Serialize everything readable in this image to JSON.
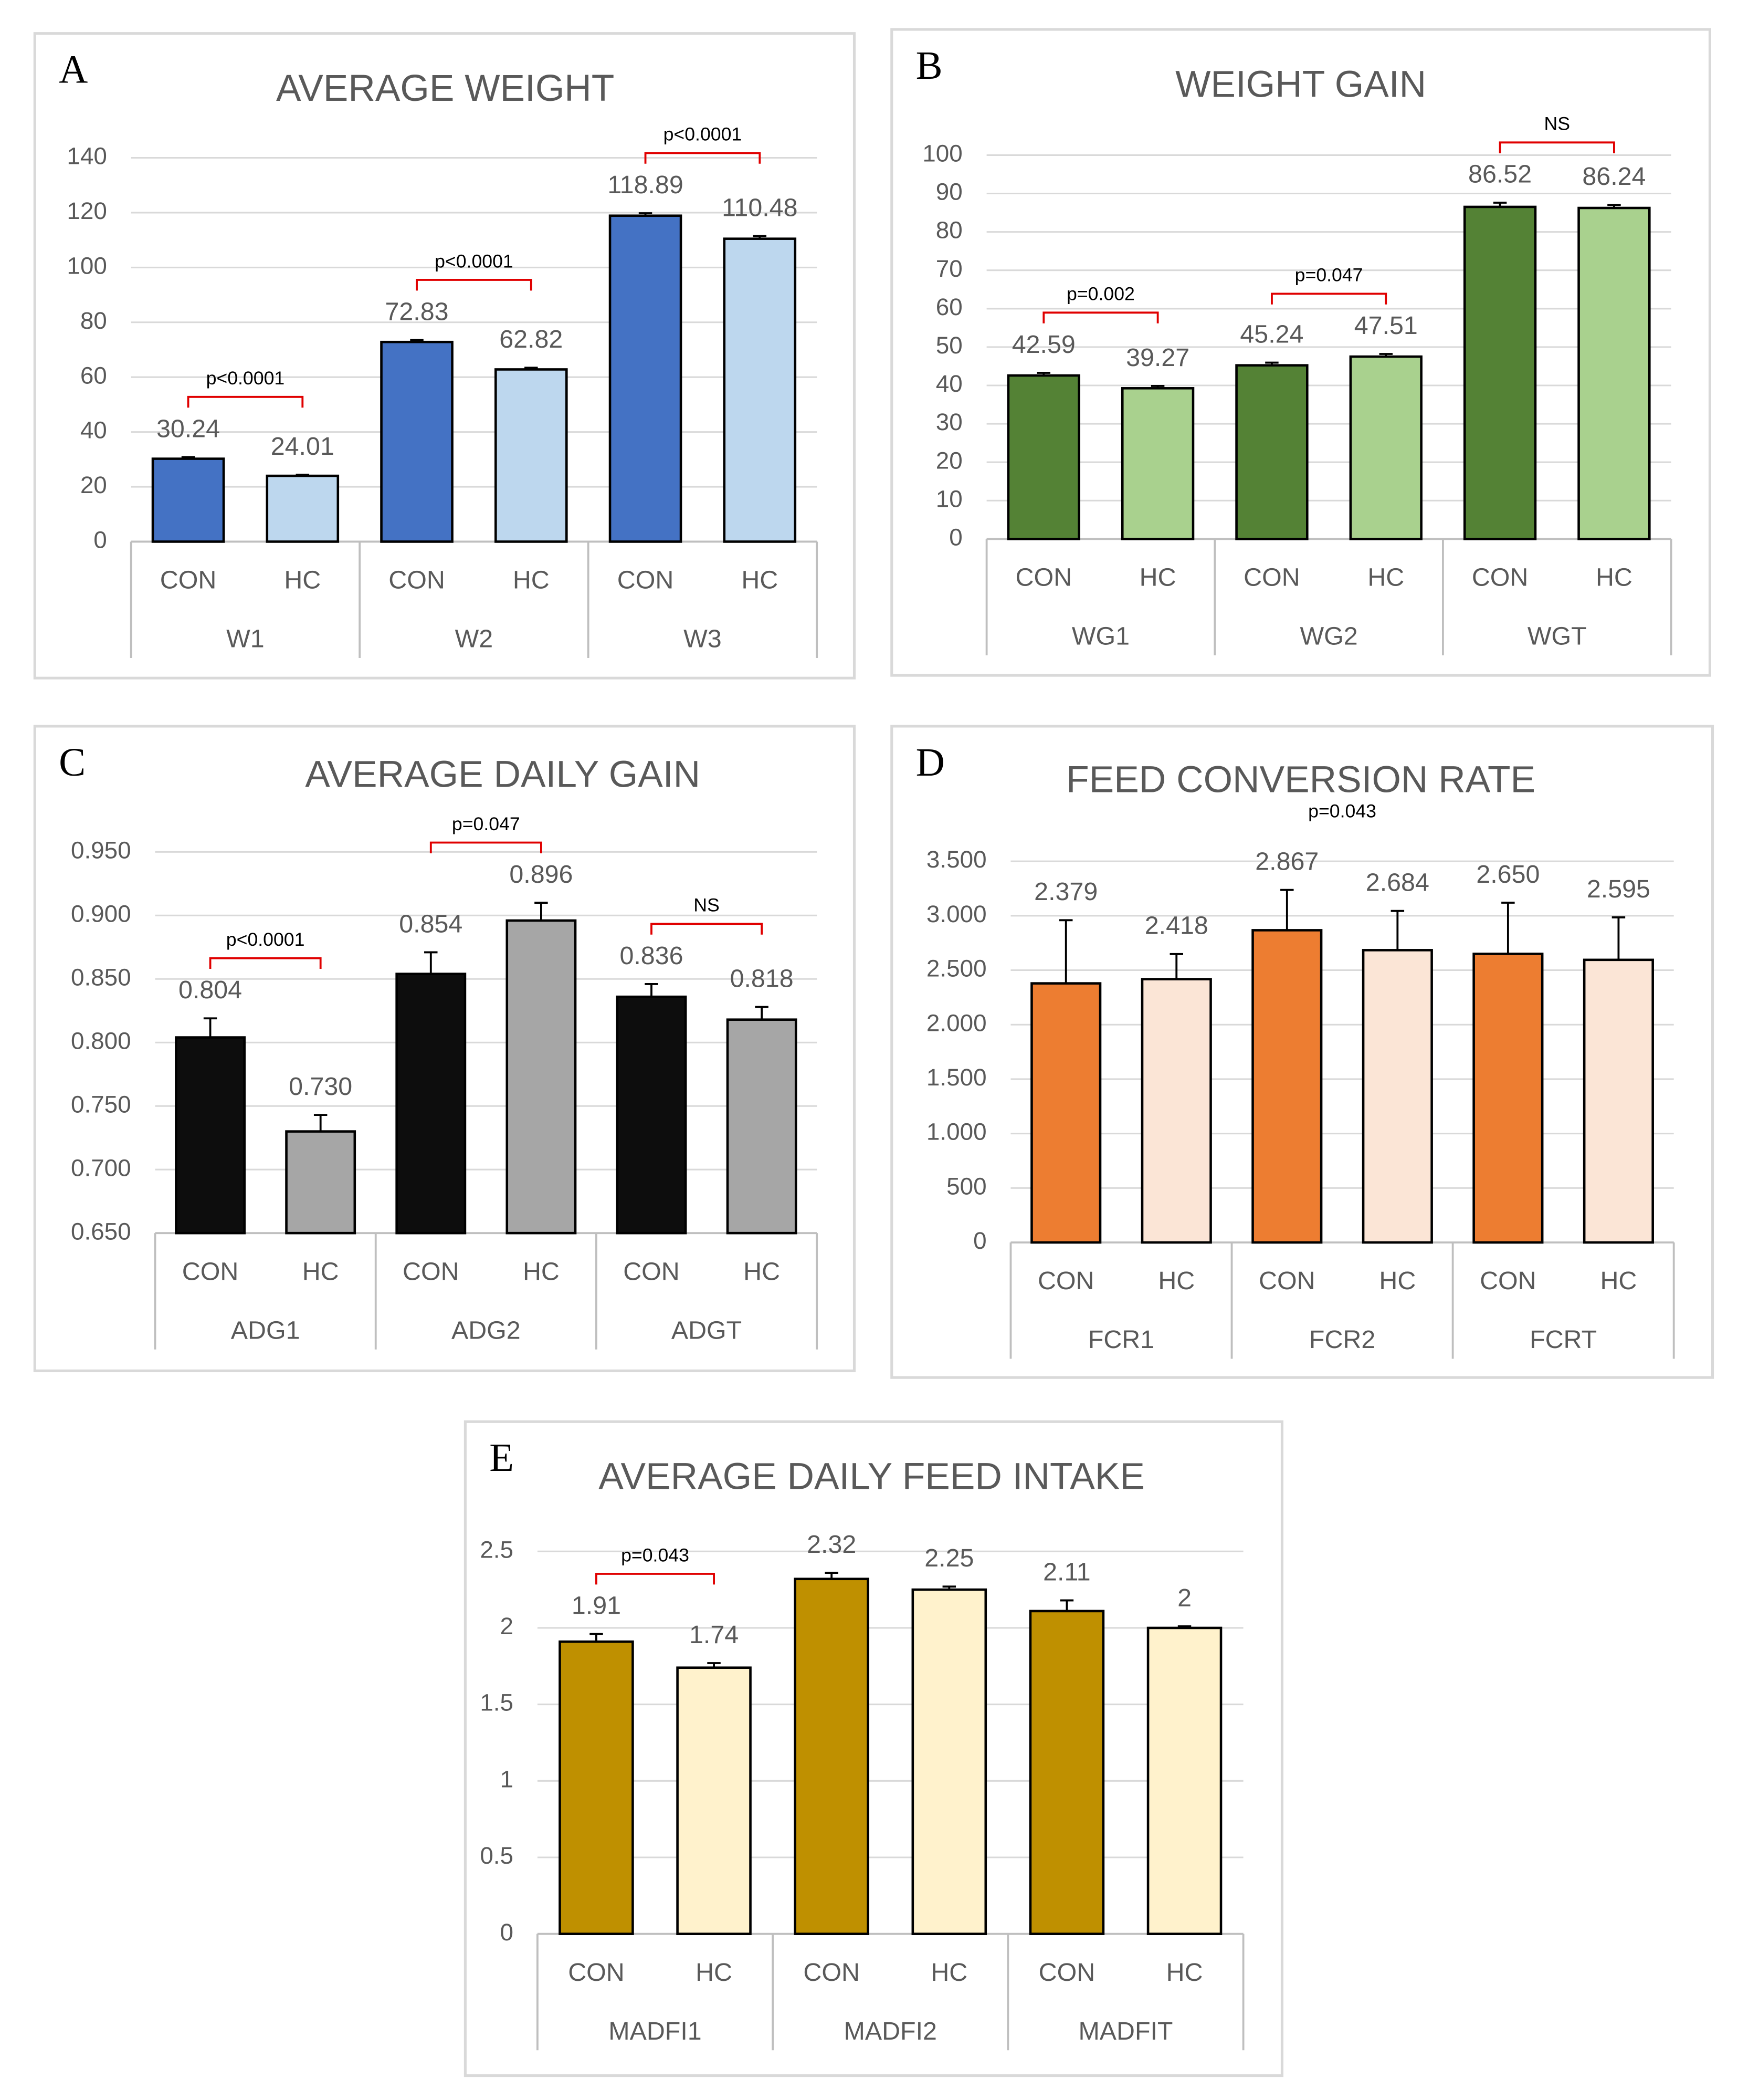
{
  "chart_data": [
    {
      "type": "bar",
      "label": "A",
      "title": "AVERAGE WEIGHT",
      "categories": [
        "W1",
        "W2",
        "W3"
      ],
      "series": [
        {
          "name": "CON",
          "color": "#4472c4",
          "values": [
            30.24,
            72.83,
            118.89
          ],
          "errors": [
            0.6,
            0.7,
            0.9
          ]
        },
        {
          "name": "HC",
          "color": "#bdd7ee",
          "values": [
            24.01,
            62.82,
            110.48
          ],
          "errors": [
            0.4,
            0.6,
            1.0
          ]
        }
      ],
      "ylim": [
        0,
        140
      ],
      "yticks": [
        0,
        20,
        40,
        60,
        80,
        100,
        120,
        140
      ],
      "grid": true,
      "annotations": [
        {
          "text": "p<0.0001",
          "group": 0,
          "bracket": true
        },
        {
          "text": "p<0.0001",
          "group": 1,
          "bracket": true
        },
        {
          "text": "p<0.0001",
          "group": 2,
          "bracket": true
        }
      ]
    },
    {
      "type": "bar",
      "label": "B",
      "title": "WEIGHT GAIN",
      "categories": [
        "WG1",
        "WG2",
        "WGT"
      ],
      "series": [
        {
          "name": "CON",
          "color": "#548235",
          "values": [
            42.59,
            45.24,
            86.52
          ],
          "errors": [
            0.7,
            0.7,
            1.1
          ]
        },
        {
          "name": "HC",
          "color": "#a9d18e",
          "values": [
            39.27,
            47.51,
            86.24
          ],
          "errors": [
            0.6,
            0.7,
            0.8
          ]
        }
      ],
      "ylim": [
        0,
        100
      ],
      "yticks": [
        0,
        10,
        20,
        30,
        40,
        50,
        60,
        70,
        80,
        90,
        100
      ],
      "grid": true,
      "annotations": [
        {
          "text": "p=0.002",
          "group": 0,
          "bracket": true
        },
        {
          "text": "p=0.047",
          "group": 1,
          "bracket": true
        },
        {
          "text": "NS",
          "group": 2,
          "bracket": true
        }
      ]
    },
    {
      "type": "bar",
      "label": "C",
      "title": "AVERAGE DAILY GAIN",
      "categories": [
        "ADG1",
        "ADG2",
        "ADGT"
      ],
      "series": [
        {
          "name": "CON",
          "color": "#0d0d0d",
          "values": [
            0.804,
            0.854,
            0.836
          ],
          "value_labels": [
            "0.804",
            "0.854",
            "0.836"
          ],
          "errors": [
            0.015,
            0.017,
            0.01
          ]
        },
        {
          "name": "HC",
          "color": "#a6a6a6",
          "values": [
            0.73,
            0.896,
            0.818
          ],
          "value_labels": [
            "0.730",
            "0.896",
            "0.818"
          ],
          "errors": [
            0.013,
            0.014,
            0.01
          ]
        }
      ],
      "ylim": [
        0.65,
        0.95
      ],
      "yticks": [
        {
          "value": 0.65,
          "label": "0.650"
        },
        {
          "value": 0.7,
          "label": "0.700"
        },
        {
          "value": 0.75,
          "label": "0.750"
        },
        {
          "value": 0.8,
          "label": "0.800"
        },
        {
          "value": 0.85,
          "label": "0.850"
        },
        {
          "value": 0.9,
          "label": "0.900"
        },
        {
          "value": 0.95,
          "label": "0.950"
        }
      ],
      "grid": true,
      "annotations": [
        {
          "text": "p<0.0001",
          "group": 0,
          "bracket": true
        },
        {
          "text": "p=0.047",
          "group": 1,
          "bracket": true
        },
        {
          "text": "NS",
          "group": 2,
          "bracket": true
        }
      ]
    },
    {
      "type": "bar",
      "label": "D",
      "title": "FEED CONVERSION RATE",
      "categories": [
        "FCR1",
        "FCR2",
        "FCRT"
      ],
      "series": [
        {
          "name": "CON",
          "color": "#ed7d31",
          "values": [
            2.379,
            2.867,
            2.65
          ],
          "value_labels": [
            "2.379",
            "2.867",
            "2.650"
          ],
          "errors": [
            0.58,
            0.37,
            0.47
          ]
        },
        {
          "name": "HC",
          "color": "#fbe5d6",
          "values": [
            2.418,
            2.684,
            2.595
          ],
          "errors": [
            0.23,
            0.36,
            0.39
          ]
        }
      ],
      "ylim": [
        0,
        3.5
      ],
      "yticks": [
        0,
        {
          "value": 0.5,
          "label": "500"
        },
        {
          "value": 1,
          "label": "1.000"
        },
        {
          "value": 1.5,
          "label": "1.500"
        },
        {
          "value": 2,
          "label": "2.000"
        },
        {
          "value": 2.5,
          "label": "2.500"
        },
        {
          "value": 3,
          "label": "3.000"
        },
        {
          "value": 3.5,
          "label": "3.500"
        }
      ],
      "grid": true,
      "annotations": [
        {
          "text": "p=0.043",
          "group": 1,
          "bracket": false
        }
      ]
    },
    {
      "type": "bar",
      "label": "E",
      "title": "AVERAGE DAILY FEED INTAKE",
      "categories": [
        "MADFI1",
        "MADFI2",
        "MADFIT"
      ],
      "series": [
        {
          "name": "CON",
          "color": "#bf9000",
          "values": [
            1.91,
            2.32,
            2.11
          ],
          "errors": [
            0.05,
            0.04,
            0.07
          ]
        },
        {
          "name": "HC",
          "color": "#fff2cc",
          "values": [
            1.74,
            2.25,
            2
          ],
          "errors": [
            0.03,
            0.02,
            0.01
          ]
        }
      ],
      "ylim": [
        0,
        2.5
      ],
      "yticks": [
        0,
        0.5,
        1,
        1.5,
        2,
        2.5
      ],
      "grid": true,
      "annotations": [
        {
          "text": "p=0.043",
          "group": 0,
          "bracket": true
        }
      ]
    }
  ]
}
